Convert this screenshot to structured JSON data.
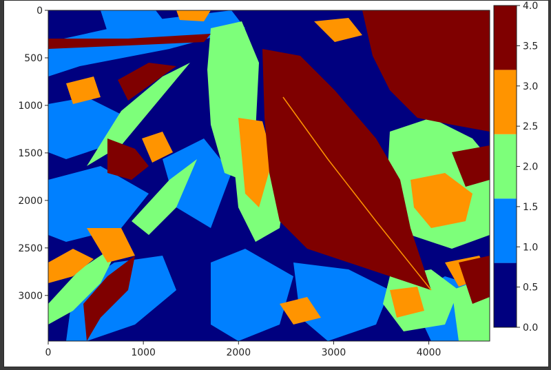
{
  "chart_data": [
    {
      "type": "heatmap",
      "title": "",
      "xlabel": "",
      "ylabel": "",
      "xlim": [
        0,
        4640
      ],
      "ylim": [
        3480,
        0
      ],
      "x_ticks": [
        {
          "value": 0,
          "label": "0"
        },
        {
          "value": 1000,
          "label": "1000"
        },
        {
          "value": 2000,
          "label": "2000"
        },
        {
          "value": 3000,
          "label": "3000"
        },
        {
          "value": 4000,
          "label": "4000"
        }
      ],
      "y_ticks": [
        {
          "value": 0,
          "label": "0"
        },
        {
          "value": 500,
          "label": "500"
        },
        {
          "value": 1000,
          "label": "1000"
        },
        {
          "value": 1500,
          "label": "1500"
        },
        {
          "value": 2000,
          "label": "2000"
        },
        {
          "value": 2500,
          "label": "2500"
        },
        {
          "value": 3000,
          "label": "3000"
        }
      ],
      "description": "Segmented leaf image with 5 discrete classes mapped by jet colormap"
    },
    {
      "type": "colorbar",
      "range": [
        0.0,
        4.0
      ],
      "ticks": [
        {
          "value": 0.0,
          "label": "0.0"
        },
        {
          "value": 0.5,
          "label": "0.5"
        },
        {
          "value": 1.0,
          "label": "1.0"
        },
        {
          "value": 1.5,
          "label": "1.5"
        },
        {
          "value": 2.0,
          "label": "2.0"
        },
        {
          "value": 2.5,
          "label": "2.5"
        },
        {
          "value": 3.0,
          "label": "3.0"
        },
        {
          "value": 3.5,
          "label": "3.5"
        },
        {
          "value": 4.0,
          "label": "4.0"
        }
      ],
      "bins": [
        {
          "from": 0.0,
          "to": 0.8,
          "color": "#00007f"
        },
        {
          "from": 0.8,
          "to": 1.6,
          "color": "#0080ff"
        },
        {
          "from": 1.6,
          "to": 2.4,
          "color": "#7dff7a"
        },
        {
          "from": 2.4,
          "to": 3.2,
          "color": "#ff9400"
        },
        {
          "from": 3.2,
          "to": 4.0,
          "color": "#7f0000"
        }
      ]
    }
  ],
  "colors": {
    "class0": "#00007f",
    "class1": "#0080ff",
    "class2": "#7dff7a",
    "class3": "#ff9400",
    "class4": "#7f0000"
  }
}
